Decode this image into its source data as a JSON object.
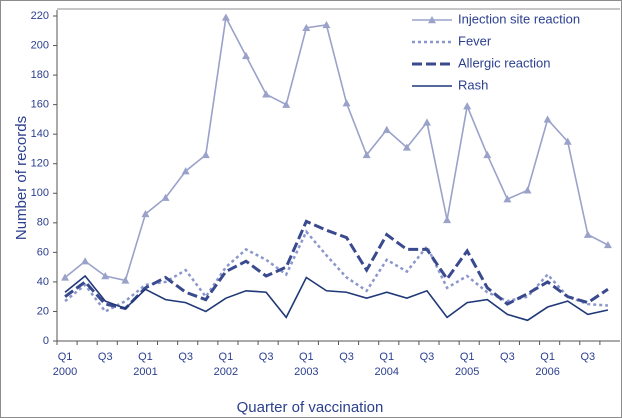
{
  "chart_data": {
    "type": "line",
    "x_label": "Quarter of vaccination",
    "y_label": "Number of records",
    "categories": [
      "Q1",
      null,
      "Q3",
      null,
      "Q1",
      null,
      "Q3",
      null,
      "Q1",
      null,
      "Q3",
      null,
      "Q1",
      null,
      "Q3",
      null,
      "Q1",
      null,
      "Q3",
      null,
      "Q1",
      null,
      "Q3",
      null,
      "Q1",
      null,
      "Q3",
      null
    ],
    "years": [
      "2000",
      "2001",
      "2002",
      "2003",
      "2004",
      "2005",
      "2006"
    ],
    "ylim": [
      0,
      220
    ],
    "yticks": [
      0,
      20,
      40,
      60,
      80,
      100,
      120,
      140,
      160,
      180,
      200,
      220
    ],
    "legend": "top-right",
    "series": [
      {
        "name": "Injection site reaction",
        "color": "#9aa2c9",
        "style": "solid-triangle",
        "values": [
          43,
          54,
          44,
          41,
          86,
          97,
          115,
          126,
          219,
          193,
          167,
          160,
          212,
          214,
          161,
          126,
          143,
          131,
          148,
          82,
          159,
          126,
          96,
          102,
          150,
          135,
          72,
          65
        ]
      },
      {
        "name": "Fever",
        "color": "#8b97cc",
        "style": "dotted",
        "values": [
          27,
          38,
          20,
          27,
          38,
          40,
          48,
          30,
          50,
          62,
          55,
          45,
          74,
          58,
          43,
          34,
          55,
          47,
          64,
          36,
          44,
          33,
          27,
          30,
          45,
          30,
          25,
          24
        ]
      },
      {
        "name": "Allergic reaction",
        "color": "#3a4a8e",
        "style": "dashed",
        "values": [
          30,
          40,
          25,
          22,
          36,
          43,
          33,
          28,
          47,
          54,
          44,
          50,
          81,
          75,
          70,
          48,
          72,
          62,
          62,
          42,
          61,
          36,
          25,
          32,
          40,
          30,
          26,
          35
        ]
      },
      {
        "name": "Rash",
        "color": "#1f3878",
        "style": "solid",
        "values": [
          33,
          44,
          27,
          22,
          35,
          28,
          26,
          20,
          29,
          34,
          33,
          16,
          43,
          34,
          33,
          29,
          33,
          29,
          34,
          16,
          26,
          28,
          18,
          14,
          23,
          27,
          18,
          21
        ]
      }
    ]
  }
}
